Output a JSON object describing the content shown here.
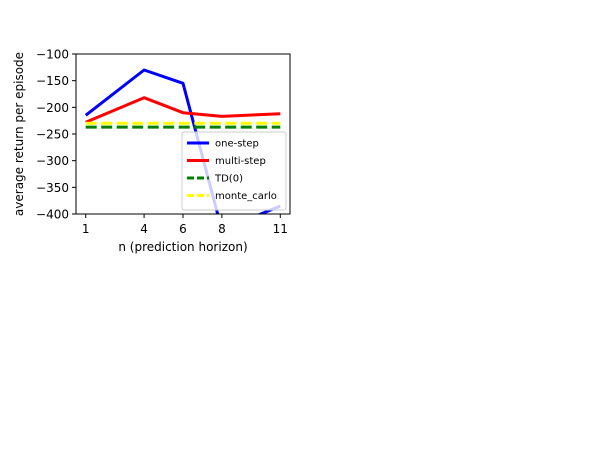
{
  "chart_data": {
    "type": "line",
    "xlabel": "n (prediction horizon)",
    "ylabel": "average return per episode",
    "x": [
      1,
      4,
      6,
      8,
      11
    ],
    "x_ticks": [
      1,
      4,
      6,
      8,
      11
    ],
    "y_ticks": [
      -100,
      -150,
      -200,
      -250,
      -300,
      -350,
      -400
    ],
    "y_tick_labels": [
      "−100",
      "−150",
      "−200",
      "−250",
      "−300",
      "−350",
      "−400"
    ],
    "xlim": [
      0.5,
      11.5
    ],
    "ylim": [
      -400,
      -100
    ],
    "grid": false,
    "legend_position": "lower right",
    "series": [
      {
        "name": "one-step",
        "values": [
          -215,
          -130,
          -155,
          -430,
          -385
        ],
        "color": "#0000ff",
        "style": "solid"
      },
      {
        "name": "multi-step",
        "values": [
          -228,
          -182,
          -210,
          -217,
          -212
        ],
        "color": "#ff0000",
        "style": "solid"
      },
      {
        "name": "TD(0)",
        "values": [
          -237,
          -237,
          -237,
          -237,
          -237
        ],
        "color": "#008000",
        "style": "dashed"
      },
      {
        "name": "monte_carlo",
        "values": [
          -230,
          -230,
          -230,
          -230,
          -230
        ],
        "color": "#ffff00",
        "style": "dashed"
      }
    ]
  }
}
